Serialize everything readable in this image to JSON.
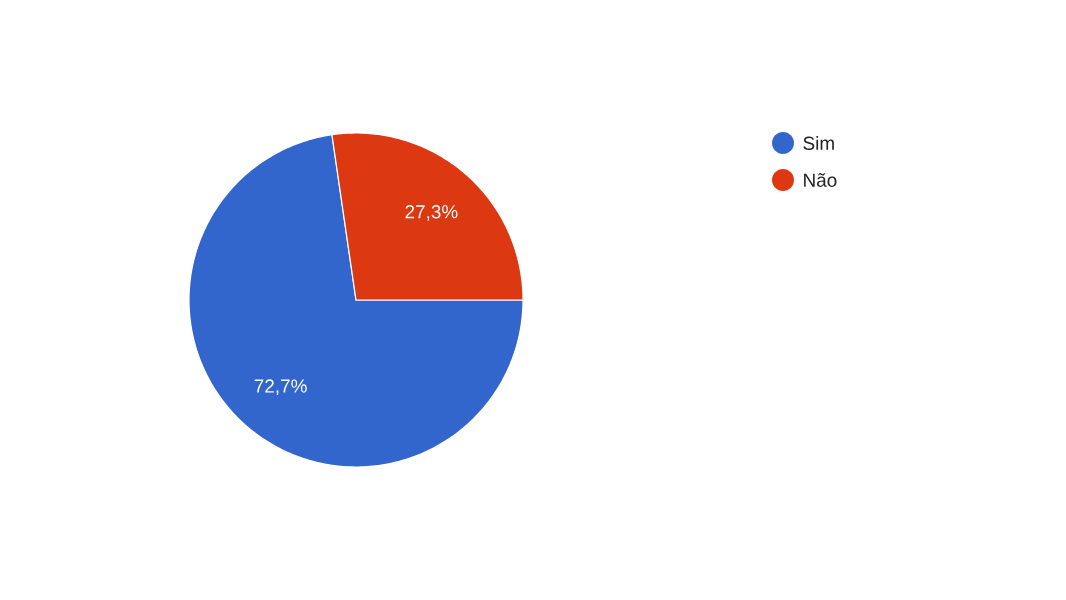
{
  "chart_data": {
    "type": "pie",
    "categories": [
      "Sim",
      "Não"
    ],
    "values": [
      72.7,
      27.3
    ],
    "colors": [
      "#3366cc",
      "#dc3912"
    ],
    "value_labels": [
      "72,7%",
      "27,3%"
    ],
    "legend": "top right"
  }
}
